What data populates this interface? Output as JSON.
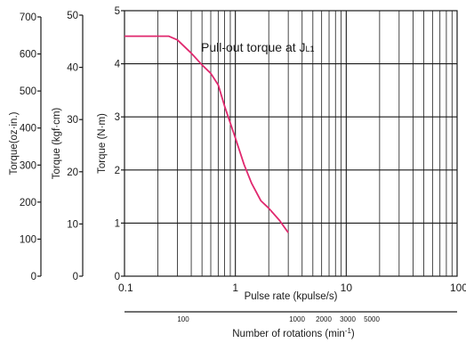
{
  "chart_data": {
    "type": "line",
    "x_scale": "log",
    "xlim": [
      0.1,
      100
    ],
    "ylim": [
      0,
      5
    ],
    "xlabel": "Pulse rate (kpulse/s)",
    "x_ticks": [
      {
        "value": 0.1,
        "label": "0.1"
      },
      {
        "value": 1,
        "label": "1"
      },
      {
        "value": 10,
        "label": "10"
      },
      {
        "value": 100,
        "label": "100"
      }
    ],
    "y_axes": [
      {
        "label": "Torque (N·m)",
        "ticks": [
          "0",
          "1",
          "2",
          "3",
          "4",
          "5"
        ]
      },
      {
        "label": "Torque (kgf·cm)",
        "ticks": [
          "0",
          "10",
          "20",
          "30",
          "40",
          "50"
        ]
      },
      {
        "label": "Torque(oz·in.)",
        "ticks": [
          "0",
          "100",
          "200",
          "300",
          "400",
          "500",
          "600",
          "700"
        ]
      }
    ],
    "series": [
      {
        "label": "Pull-out  torque at JL1",
        "color": "#e0286e",
        "points": [
          [
            0.1,
            4.52
          ],
          [
            0.2,
            4.52
          ],
          [
            0.25,
            4.52
          ],
          [
            0.3,
            4.45
          ],
          [
            0.4,
            4.2
          ],
          [
            0.5,
            3.98
          ],
          [
            0.6,
            3.82
          ],
          [
            0.7,
            3.6
          ],
          [
            0.8,
            3.2
          ],
          [
            1.0,
            2.6
          ],
          [
            1.2,
            2.1
          ],
          [
            1.4,
            1.75
          ],
          [
            1.7,
            1.42
          ],
          [
            2.0,
            1.28
          ],
          [
            2.5,
            1.05
          ],
          [
            3.0,
            0.82
          ]
        ]
      }
    ],
    "grid": true,
    "secondary_axis": {
      "label": "Number of rotations (min⁻¹)",
      "ticks": [
        "100",
        "1000",
        "2000",
        "3000",
        "5000"
      ]
    }
  }
}
